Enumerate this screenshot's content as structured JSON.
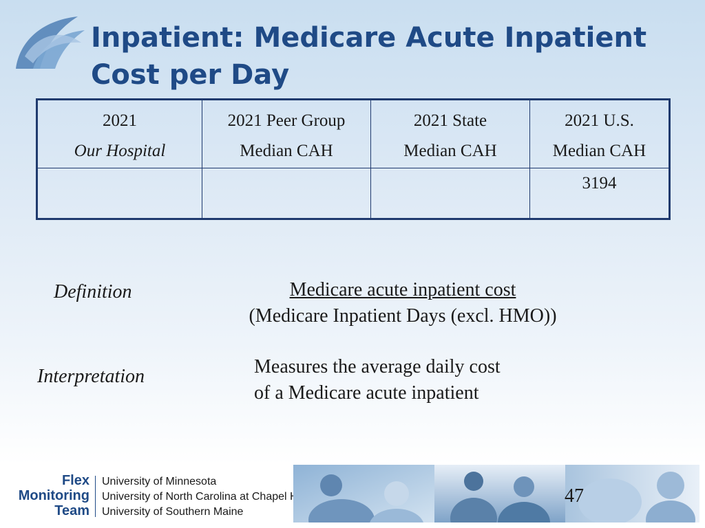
{
  "slide": {
    "title_line1": "Inpatient:  Medicare Acute Inpatient",
    "title_line2": "Cost per Day",
    "page_number": "47"
  },
  "table": {
    "headers": [
      {
        "line1": "2021",
        "line2": "Our Hospital",
        "line2_italic": true
      },
      {
        "line1": "2021 Peer Group",
        "line2": "Median CAH"
      },
      {
        "line1": "2021 State",
        "line2": "Median CAH"
      },
      {
        "line1": "2021 U.S.",
        "line2": "Median CAH"
      }
    ],
    "values": [
      "",
      "",
      "",
      "3194"
    ]
  },
  "definition": {
    "label": "Definition",
    "numerator": "Medicare acute inpatient cost",
    "denominator": "(Medicare Inpatient Days (excl. HMO))"
  },
  "interpretation": {
    "label": "Interpretation",
    "line1": "Measures the average daily cost",
    "line2": "of a Medicare acute inpatient"
  },
  "footer": {
    "brand_line1": "Flex",
    "brand_line2": "Monitoring",
    "brand_line3": "Team",
    "universities": [
      "University of Minnesota",
      "University of North Carolina at Chapel Hill",
      "University of Southern Maine"
    ]
  },
  "colors": {
    "title": "#1f4a86",
    "table_border": "#1f3a6e",
    "brand": "#1f4a86"
  }
}
